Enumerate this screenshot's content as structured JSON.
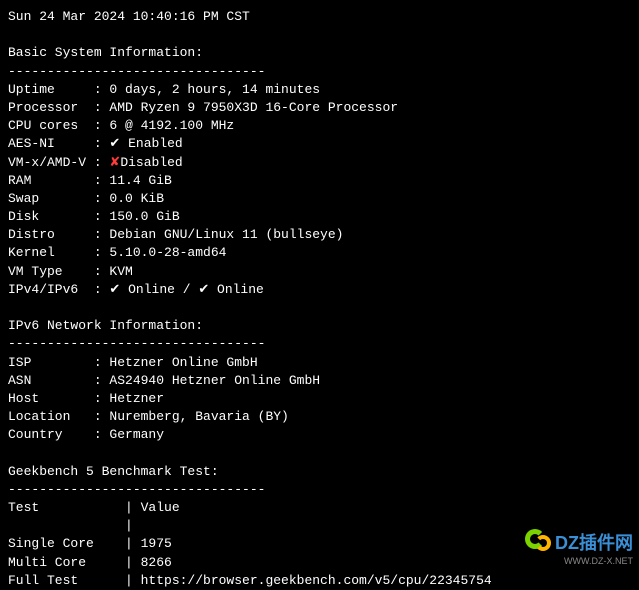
{
  "timestamp": "Sun 24 Mar 2024 10:40:16 PM CST",
  "sections": {
    "basic_header": "Basic System Information:",
    "divider": "---------------------------------",
    "rows": [
      {
        "label": "Uptime",
        "value": "0 days, 2 hours, 14 minutes"
      },
      {
        "label": "Processor",
        "value": "AMD Ryzen 9 7950X3D 16-Core Processor"
      },
      {
        "label": "CPU cores",
        "value": "6 @ 4192.100 MHz"
      },
      {
        "label": "AES-NI",
        "value": "✔ Enabled",
        "status": "check"
      },
      {
        "label": "VM-x/AMD-V",
        "value_prefix": "",
        "cross": "✘",
        "value_suffix": "Disabled",
        "status": "cross"
      },
      {
        "label": "RAM",
        "value": "11.4 GiB"
      },
      {
        "label": "Swap",
        "value": "0.0 KiB"
      },
      {
        "label": "Disk",
        "value": "150.0 GiB"
      },
      {
        "label": "Distro",
        "value": "Debian GNU/Linux 11 (bullseye)"
      },
      {
        "label": "Kernel",
        "value": "5.10.0-28-amd64"
      },
      {
        "label": "VM Type",
        "value": "KVM"
      },
      {
        "label": "IPv4/IPv6",
        "value": "✔ Online / ✔ Online",
        "status": "check"
      }
    ],
    "ipv6_header": "IPv6 Network Information:",
    "ipv6_rows": [
      {
        "label": "ISP",
        "value": "Hetzner Online GmbH"
      },
      {
        "label": "ASN",
        "value": "AS24940 Hetzner Online GmbH"
      },
      {
        "label": "Host",
        "value": "Hetzner"
      },
      {
        "label": "Location",
        "value": "Nuremberg, Bavaria (BY)"
      },
      {
        "label": "Country",
        "value": "Germany"
      }
    ],
    "geekbench_header": "Geekbench 5 Benchmark Test:",
    "table_header": {
      "col1": "Test",
      "col2": "Value"
    },
    "geekbench_rows": [
      {
        "label": "Single Core",
        "value": "1975"
      },
      {
        "label": "Multi Core",
        "value": "8266"
      },
      {
        "label": "Full Test",
        "value": "https://browser.geekbench.com/v5/cpu/22345754"
      }
    ]
  },
  "watermark": {
    "brand": "DZ插件网",
    "url": "WWW.DZ-X.NET"
  },
  "styling": {
    "bg_color": "#000000",
    "text_color": "#ffffff",
    "cross_color": "#ff3b3b",
    "font_family": "Courier New",
    "font_size": 13,
    "label_width": 11
  }
}
